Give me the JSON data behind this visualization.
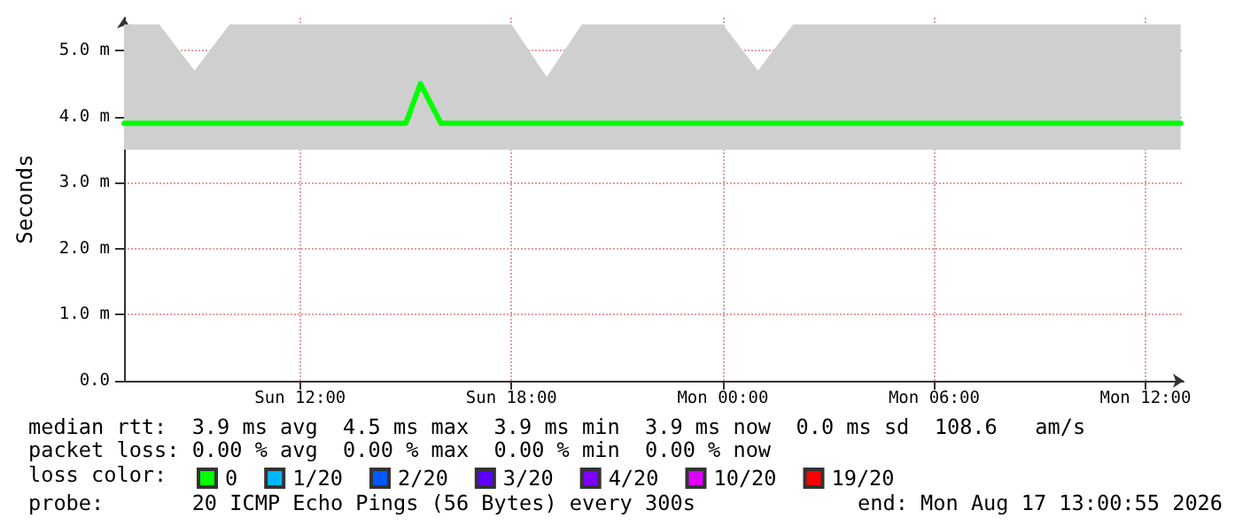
{
  "chart_data": {
    "type": "line",
    "ylabel": "Seconds",
    "legend_title": "loss color:",
    "legend": "bottom left",
    "grid": true,
    "marker": "none",
    "line_style": "solid",
    "x": [
      "2026-08-16T07:00",
      "2026-08-16T08:00",
      "2026-08-16T09:00",
      "2026-08-16T10:00",
      "2026-08-16T11:00",
      "2026-08-16T12:00",
      "2026-08-16T13:00",
      "2026-08-16T14:00",
      "2026-08-16T15:00",
      "2026-08-16T15:25",
      "2026-08-16T16:00",
      "2026-08-16T17:00",
      "2026-08-16T18:00",
      "2026-08-16T19:00",
      "2026-08-16T20:00",
      "2026-08-16T21:00",
      "2026-08-16T22:00",
      "2026-08-16T23:00",
      "2026-08-17T00:00",
      "2026-08-17T01:00",
      "2026-08-17T02:00",
      "2026-08-17T03:00",
      "2026-08-17T04:00",
      "2026-08-17T05:00",
      "2026-08-17T06:00",
      "2026-08-17T07:00",
      "2026-08-17T08:00",
      "2026-08-17T09:00",
      "2026-08-17T10:00",
      "2026-08-17T11:00",
      "2026-08-17T12:00",
      "2026-08-17T13:00"
    ],
    "series": [
      {
        "name": "0",
        "color": "#00ff00",
        "values": [
          3.9,
          3.9,
          3.9,
          3.9,
          3.9,
          3.9,
          3.9,
          3.9,
          3.9,
          4.5,
          3.9,
          3.9,
          3.9,
          3.9,
          3.9,
          3.9,
          3.9,
          3.9,
          3.9,
          3.9,
          3.9,
          3.9,
          3.9,
          3.9,
          3.9,
          3.9,
          3.9,
          3.9,
          3.9,
          3.9,
          3.9,
          3.9
        ],
        "lower": [
          3.5,
          3.5,
          3.5,
          3.5,
          3.5,
          3.5,
          3.5,
          3.5,
          3.5,
          3.5,
          3.5,
          3.5,
          3.5,
          3.5,
          3.5,
          3.5,
          3.5,
          3.5,
          3.5,
          3.5,
          3.5,
          3.5,
          3.5,
          3.5,
          3.5,
          3.5,
          3.5,
          3.5,
          3.5,
          3.5,
          3.5,
          3.5
        ],
        "upper": [
          5.4,
          5.4,
          4.7,
          5.4,
          5.4,
          5.4,
          5.4,
          5.4,
          5.4,
          5.4,
          5.4,
          5.4,
          5.4,
          4.6,
          5.4,
          5.4,
          5.4,
          5.4,
          5.4,
          4.7,
          5.4,
          5.4,
          5.4,
          5.4,
          5.4,
          5.4,
          5.4,
          5.4,
          5.4,
          5.4,
          5.4,
          5.4
        ]
      },
      {
        "name": "1/20",
        "color": "#00b8ff",
        "values": [
          null,
          null,
          null,
          null,
          null,
          null,
          null,
          null,
          null,
          null,
          null,
          null,
          null,
          null,
          null,
          null,
          null,
          null,
          null,
          null,
          null,
          null,
          null,
          null,
          null,
          null,
          null,
          null,
          null,
          null,
          null,
          null
        ]
      },
      {
        "name": "2/20",
        "color": "#0059ff",
        "values": [
          null,
          null,
          null,
          null,
          null,
          null,
          null,
          null,
          null,
          null,
          null,
          null,
          null,
          null,
          null,
          null,
          null,
          null,
          null,
          null,
          null,
          null,
          null,
          null,
          null,
          null,
          null,
          null,
          null,
          null,
          null,
          null
        ]
      },
      {
        "name": "3/20",
        "color": "#5e00ff",
        "values": [
          null,
          null,
          null,
          null,
          null,
          null,
          null,
          null,
          null,
          null,
          null,
          null,
          null,
          null,
          null,
          null,
          null,
          null,
          null,
          null,
          null,
          null,
          null,
          null,
          null,
          null,
          null,
          null,
          null,
          null,
          null,
          null
        ]
      },
      {
        "name": "4/20",
        "color": "#7e00ff",
        "values": [
          null,
          null,
          null,
          null,
          null,
          null,
          null,
          null,
          null,
          null,
          null,
          null,
          null,
          null,
          null,
          null,
          null,
          null,
          null,
          null,
          null,
          null,
          null,
          null,
          null,
          null,
          null,
          null,
          null,
          null,
          null,
          null
        ]
      },
      {
        "name": "10/20",
        "color": "#dd00ff",
        "values": [
          null,
          null,
          null,
          null,
          null,
          null,
          null,
          null,
          null,
          null,
          null,
          null,
          null,
          null,
          null,
          null,
          null,
          null,
          null,
          null,
          null,
          null,
          null,
          null,
          null,
          null,
          null,
          null,
          null,
          null,
          null,
          null
        ]
      },
      {
        "name": "19/20",
        "color": "#ff0000",
        "values": [
          null,
          null,
          null,
          null,
          null,
          null,
          null,
          null,
          null,
          null,
          null,
          null,
          null,
          null,
          null,
          null,
          null,
          null,
          null,
          null,
          null,
          null,
          null,
          null,
          null,
          null,
          null,
          null,
          null,
          null,
          null,
          null
        ]
      }
    ],
    "xlim": [
      "2026-08-16T07:00",
      "2026-08-17T13:05"
    ],
    "xticks": [
      {
        "value": "2026-08-16T12:00",
        "label": "Sun 12:00"
      },
      {
        "value": "2026-08-16T18:00",
        "label": "Sun 18:00"
      },
      {
        "value": "2026-08-17T00:00",
        "label": "Mon 00:00"
      },
      {
        "value": "2026-08-17T06:00",
        "label": "Mon 06:00"
      },
      {
        "value": "2026-08-17T12:00",
        "label": "Mon 12:00"
      }
    ],
    "ylim": [
      0,
      5.5
    ],
    "yticks": [
      {
        "value": 0,
        "label": "0.0"
      },
      {
        "value": 1,
        "label": "1.0 m"
      },
      {
        "value": 2,
        "label": "2.0 m"
      },
      {
        "value": 3,
        "label": "3.0 m"
      },
      {
        "value": 4,
        "label": "4.0 m"
      },
      {
        "value": 5,
        "label": "5.0 m"
      }
    ],
    "annotations": [
      "median rtt:  3.9 ms avg  4.5 ms max  3.9 ms min  3.9 ms now  0.0 ms sd  108.6   am/s",
      "packet loss: 0.00 % avg  0.00 % max  0.00 % min  0.00 % now",
      "probe:       20 ICMP Echo Pings (56 Bytes) every 300s",
      "end: Mon Aug 17 13:00:55 2026"
    ]
  }
}
